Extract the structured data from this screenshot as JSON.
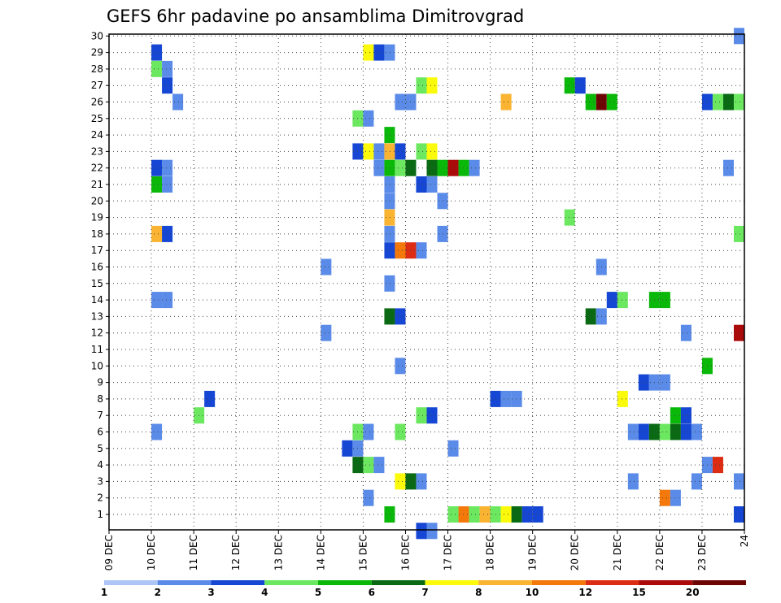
{
  "chart_data": {
    "type": "heatmap",
    "title": "GEFS 6hr padavine po ansamblima Dimitrovgrad",
    "x_labels": [
      "09 DEC",
      "10 DEC",
      "11 DEC",
      "12 DEC",
      "13 DEC",
      "14 DEC",
      "15 DEC",
      "16 DEC",
      "17 DEC",
      "18 DEC",
      "19 DEC",
      "20 DEC",
      "21 DEC",
      "22 DEC",
      "23 DEC",
      "24"
    ],
    "y_labels": [
      "1",
      "2",
      "3",
      "4",
      "5",
      "6",
      "7",
      "8",
      "9",
      "10",
      "11",
      "12",
      "13",
      "14",
      "15",
      "16",
      "17",
      "18",
      "19",
      "20",
      "21",
      "22",
      "23",
      "24",
      "25",
      "26",
      "27",
      "28",
      "29",
      "30"
    ],
    "grid": true,
    "legend": {
      "placement": "bottom",
      "labels": [
        "1",
        "2",
        "3",
        "4",
        "5",
        "6",
        "7",
        "8",
        "10",
        "12",
        "15",
        "20"
      ],
      "colors": [
        "#aec6f5",
        "#5a8be8",
        "#1546d4",
        "#6ce860",
        "#0ab80a",
        "#0a6a14",
        "#fafa0a",
        "#fab432",
        "#f5780a",
        "#dc2d14",
        "#aa0a0a",
        "#6e0505"
      ]
    },
    "cells": [
      [
        1,
        29,
        2
      ],
      [
        1,
        28,
        3
      ],
      [
        1.25,
        28,
        1
      ],
      [
        1.25,
        27,
        2
      ],
      [
        1.5,
        26,
        1
      ],
      [
        1,
        22,
        2
      ],
      [
        1.25,
        22,
        1
      ],
      [
        1,
        21,
        4
      ],
      [
        1.25,
        21,
        1
      ],
      [
        1,
        18,
        7
      ],
      [
        1.25,
        18,
        2
      ],
      [
        1,
        14,
        1
      ],
      [
        1.25,
        14,
        1
      ],
      [
        1,
        6,
        1
      ],
      [
        2,
        7,
        3
      ],
      [
        2.25,
        8,
        2
      ],
      [
        5,
        16,
        1
      ],
      [
        5,
        12,
        1
      ],
      [
        5.75,
        25,
        3
      ],
      [
        6,
        25,
        1
      ],
      [
        5.75,
        23,
        2
      ],
      [
        6,
        23,
        6
      ],
      [
        5.5,
        5,
        2
      ],
      [
        5.75,
        5,
        1
      ],
      [
        5.75,
        6,
        3
      ],
      [
        6,
        6,
        1
      ],
      [
        5.75,
        4,
        5
      ],
      [
        6,
        4,
        3
      ],
      [
        6.25,
        4,
        1
      ],
      [
        6,
        2,
        1
      ],
      [
        6,
        29,
        6
      ],
      [
        6.25,
        29,
        2
      ],
      [
        6.5,
        29,
        1
      ],
      [
        6.25,
        23,
        1
      ],
      [
        6.5,
        23,
        7
      ],
      [
        6.75,
        23,
        2
      ],
      [
        6.5,
        24,
        4
      ],
      [
        6.25,
        22,
        1
      ],
      [
        6.5,
        22,
        4
      ],
      [
        6.75,
        22,
        3
      ],
      [
        7,
        22,
        5
      ],
      [
        6.5,
        21,
        1
      ],
      [
        6.5,
        20,
        1
      ],
      [
        6.5,
        19,
        7
      ],
      [
        6.5,
        18,
        1
      ],
      [
        6.5,
        17,
        2
      ],
      [
        6.75,
        17,
        8
      ],
      [
        7,
        17,
        9
      ],
      [
        6.5,
        15,
        1
      ],
      [
        6.5,
        13,
        5
      ],
      [
        6.75,
        13,
        2
      ],
      [
        6.75,
        10,
        1
      ],
      [
        6.75,
        6,
        3
      ],
      [
        6.75,
        3,
        6
      ],
      [
        7,
        3,
        5
      ],
      [
        7.25,
        3,
        1
      ],
      [
        6.5,
        1,
        4
      ],
      [
        6.75,
        26,
        1
      ],
      [
        7,
        26,
        1
      ],
      [
        7.25,
        27,
        3
      ],
      [
        7.5,
        27,
        6
      ],
      [
        7.25,
        23,
        3
      ],
      [
        7.5,
        23,
        6
      ],
      [
        7.5,
        22,
        5
      ],
      [
        7.75,
        22,
        4
      ],
      [
        8,
        22,
        10
      ],
      [
        8.25,
        22,
        4
      ],
      [
        8.5,
        22,
        1
      ],
      [
        7.25,
        21,
        2
      ],
      [
        7.5,
        21,
        1
      ],
      [
        7.25,
        17,
        1
      ],
      [
        7.25,
        7,
        3
      ],
      [
        7.5,
        7,
        2
      ],
      [
        7.25,
        0,
        2
      ],
      [
        7.5,
        0,
        1
      ],
      [
        7.75,
        20,
        1
      ],
      [
        7.75,
        18,
        1
      ],
      [
        8,
        5,
        1
      ],
      [
        8,
        1,
        3
      ],
      [
        8.25,
        1,
        8
      ],
      [
        8.5,
        1,
        3
      ],
      [
        8.75,
        1,
        7
      ],
      [
        9,
        1,
        3
      ],
      [
        9.25,
        1,
        6
      ],
      [
        9.5,
        1,
        5
      ],
      [
        9.75,
        1,
        2
      ],
      [
        10,
        1,
        2
      ],
      [
        9.25,
        26,
        7
      ],
      [
        9,
        8,
        2
      ],
      [
        9.25,
        8,
        1
      ],
      [
        9.5,
        8,
        1
      ],
      [
        10.75,
        27,
        4
      ],
      [
        11,
        27,
        2
      ],
      [
        10.75,
        19,
        3
      ],
      [
        11.25,
        26,
        4
      ],
      [
        11.5,
        26,
        11
      ],
      [
        11.75,
        26,
        4
      ],
      [
        11.25,
        13,
        5
      ],
      [
        11.5,
        13,
        1
      ],
      [
        11.5,
        16,
        1
      ],
      [
        11.75,
        14,
        2
      ],
      [
        12,
        14,
        3
      ],
      [
        12,
        8,
        6
      ],
      [
        12.25,
        3,
        1
      ],
      [
        12.25,
        6,
        1
      ],
      [
        12.5,
        6,
        2
      ],
      [
        12.75,
        6,
        5
      ],
      [
        13,
        6,
        3
      ],
      [
        13.25,
        6,
        5
      ],
      [
        13.5,
        6,
        2
      ],
      [
        13.75,
        6,
        1
      ],
      [
        12.5,
        9,
        2
      ],
      [
        12.75,
        9,
        1
      ],
      [
        13,
        9,
        1
      ],
      [
        12.75,
        14,
        4
      ],
      [
        13,
        14,
        4
      ],
      [
        13.25,
        7,
        4
      ],
      [
        13.5,
        7,
        2
      ],
      [
        13,
        2,
        8
      ],
      [
        13.25,
        2,
        1
      ],
      [
        13.5,
        12,
        1
      ],
      [
        14,
        26,
        2
      ],
      [
        14.25,
        26,
        3
      ],
      [
        14.5,
        26,
        5
      ],
      [
        14.75,
        26,
        3
      ],
      [
        15,
        26,
        6
      ],
      [
        15.25,
        26,
        2
      ],
      [
        15.5,
        26,
        2
      ],
      [
        15.75,
        26,
        2
      ],
      [
        16,
        26,
        2
      ],
      [
        14,
        10,
        4
      ],
      [
        14,
        4,
        1
      ],
      [
        14.25,
        4,
        9
      ],
      [
        13.75,
        3,
        1
      ],
      [
        14.5,
        22,
        1
      ],
      [
        14.75,
        30,
        1
      ],
      [
        14.75,
        18,
        3
      ],
      [
        15,
        18,
        1
      ],
      [
        14.75,
        12,
        10
      ],
      [
        15,
        12,
        8
      ],
      [
        15.25,
        12,
        2
      ],
      [
        14.75,
        3,
        1
      ],
      [
        14.75,
        1,
        2
      ],
      [
        15,
        1,
        2
      ],
      [
        15.25,
        1,
        3
      ],
      [
        15.5,
        1,
        4
      ],
      [
        15.75,
        1,
        2
      ],
      [
        15.25,
        29,
        3
      ],
      [
        15.25,
        23,
        6
      ],
      [
        15,
        20,
        1
      ],
      [
        15.25,
        20,
        2
      ],
      [
        15,
        5,
        3
      ],
      [
        15.75,
        28,
        3
      ],
      [
        16,
        28,
        2
      ],
      [
        16,
        25,
        2
      ],
      [
        15.75,
        18,
        5
      ],
      [
        16,
        18,
        1
      ],
      [
        15.75,
        16,
        3
      ],
      [
        16,
        16,
        2
      ],
      [
        15.75,
        10,
        1
      ],
      [
        16,
        10,
        4
      ]
    ]
  }
}
